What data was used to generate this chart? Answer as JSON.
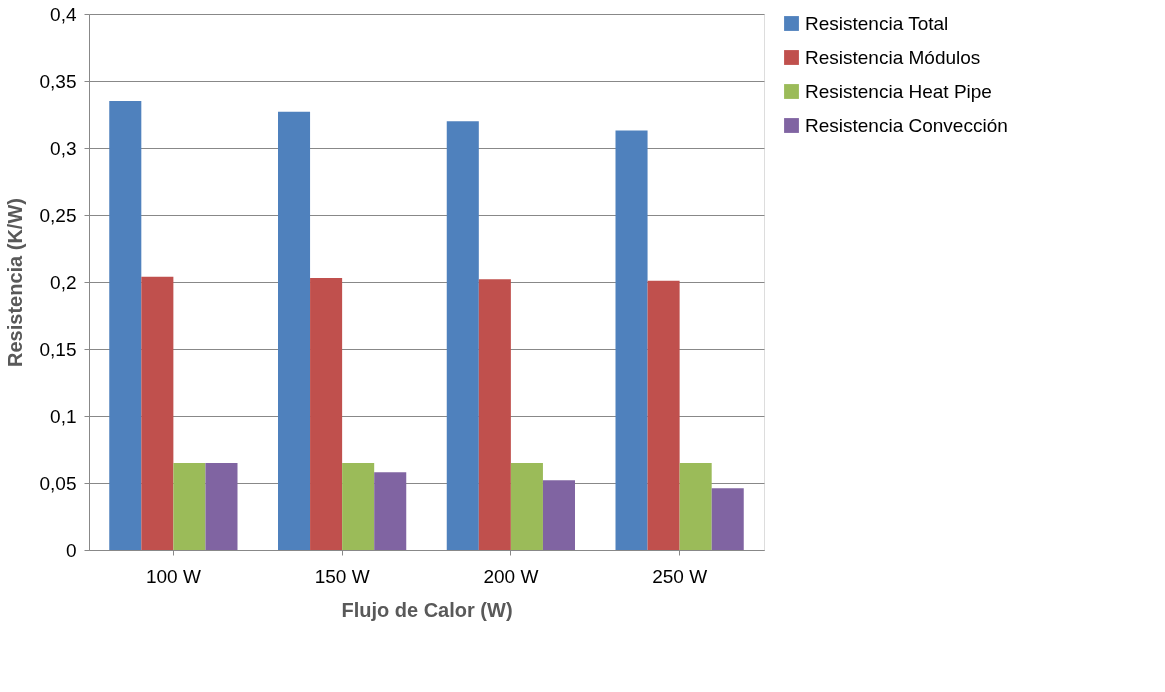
{
  "chart_data": {
    "type": "bar",
    "xlabel": "Flujo de Calor (W)",
    "ylabel": "Resistencia (K/W)",
    "categories": [
      "100 W",
      "150 W",
      "200 W",
      "250 W"
    ],
    "series": [
      {
        "name": "Resistencia Total",
        "color": "#4f81bd",
        "values": [
          0.335,
          0.327,
          0.32,
          0.313
        ]
      },
      {
        "name": "Resistencia Módulos",
        "color": "#c0504d",
        "values": [
          0.204,
          0.203,
          0.202,
          0.201
        ]
      },
      {
        "name": "Resistencia Heat Pipe",
        "color": "#9bbb59",
        "values": [
          0.065,
          0.065,
          0.065,
          0.065
        ]
      },
      {
        "name": "Resistencia Convección",
        "color": "#8064a2",
        "values": [
          0.065,
          0.058,
          0.052,
          0.046
        ]
      }
    ],
    "ylim": [
      0,
      0.4
    ],
    "yticks": [
      0,
      {
        "value": 0.05,
        "label": "0,05"
      },
      {
        "value": 0.1,
        "label": "0,1"
      },
      {
        "value": 0.15,
        "label": "0,15"
      },
      {
        "value": 0.2,
        "label": "0,2"
      },
      {
        "value": 0.25,
        "label": "0,25"
      },
      {
        "value": 0.3,
        "label": "0,3"
      },
      {
        "value": 0.35,
        "label": "0,35"
      },
      {
        "value": 0.4,
        "label": "0,4"
      }
    ],
    "grid": "y",
    "legend": "right"
  }
}
